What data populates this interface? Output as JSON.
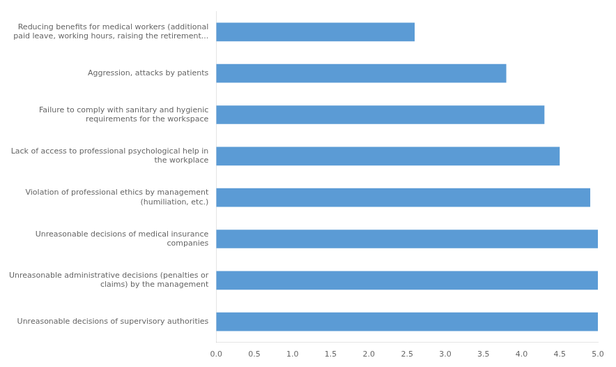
{
  "chart_data": {
    "type": "bar",
    "orientation": "horizontal",
    "categories": [
      "Unreasonable decisions of supervisory authorities",
      "Unreasonable administrative decisions (penalties or\nclaims) by the management",
      "Unreasonable decisions of medical insurance\ncompanies",
      "Violation of professional ethics by management\n(humiliation, etc.)",
      "Lack of access to professional psychological help in\nthe workplace",
      "Failure to comply with sanitary and hygienic\nrequirements for the workspace",
      "Aggression, attacks by patients",
      "Reducing benefits for medical workers (additional\npaid leave, working hours, raising the retirement..."
    ],
    "values": [
      5.0,
      5.0,
      5.0,
      4.9,
      4.5,
      4.3,
      3.8,
      2.6
    ],
    "color": "#5b9bd5",
    "xlim": [
      0,
      5.0
    ],
    "xticks": [
      {
        "value": 0,
        "label": "0.0"
      },
      0.5,
      {
        "value": 1,
        "label": "1.0"
      },
      1.5,
      {
        "value": 2,
        "label": "2.0"
      },
      2.5,
      {
        "value": 3,
        "label": "3.0"
      },
      3.5,
      {
        "value": 4,
        "label": "4.0"
      },
      4.5,
      {
        "value": 5,
        "label": "5.0"
      }
    ],
    "grid": false
  }
}
